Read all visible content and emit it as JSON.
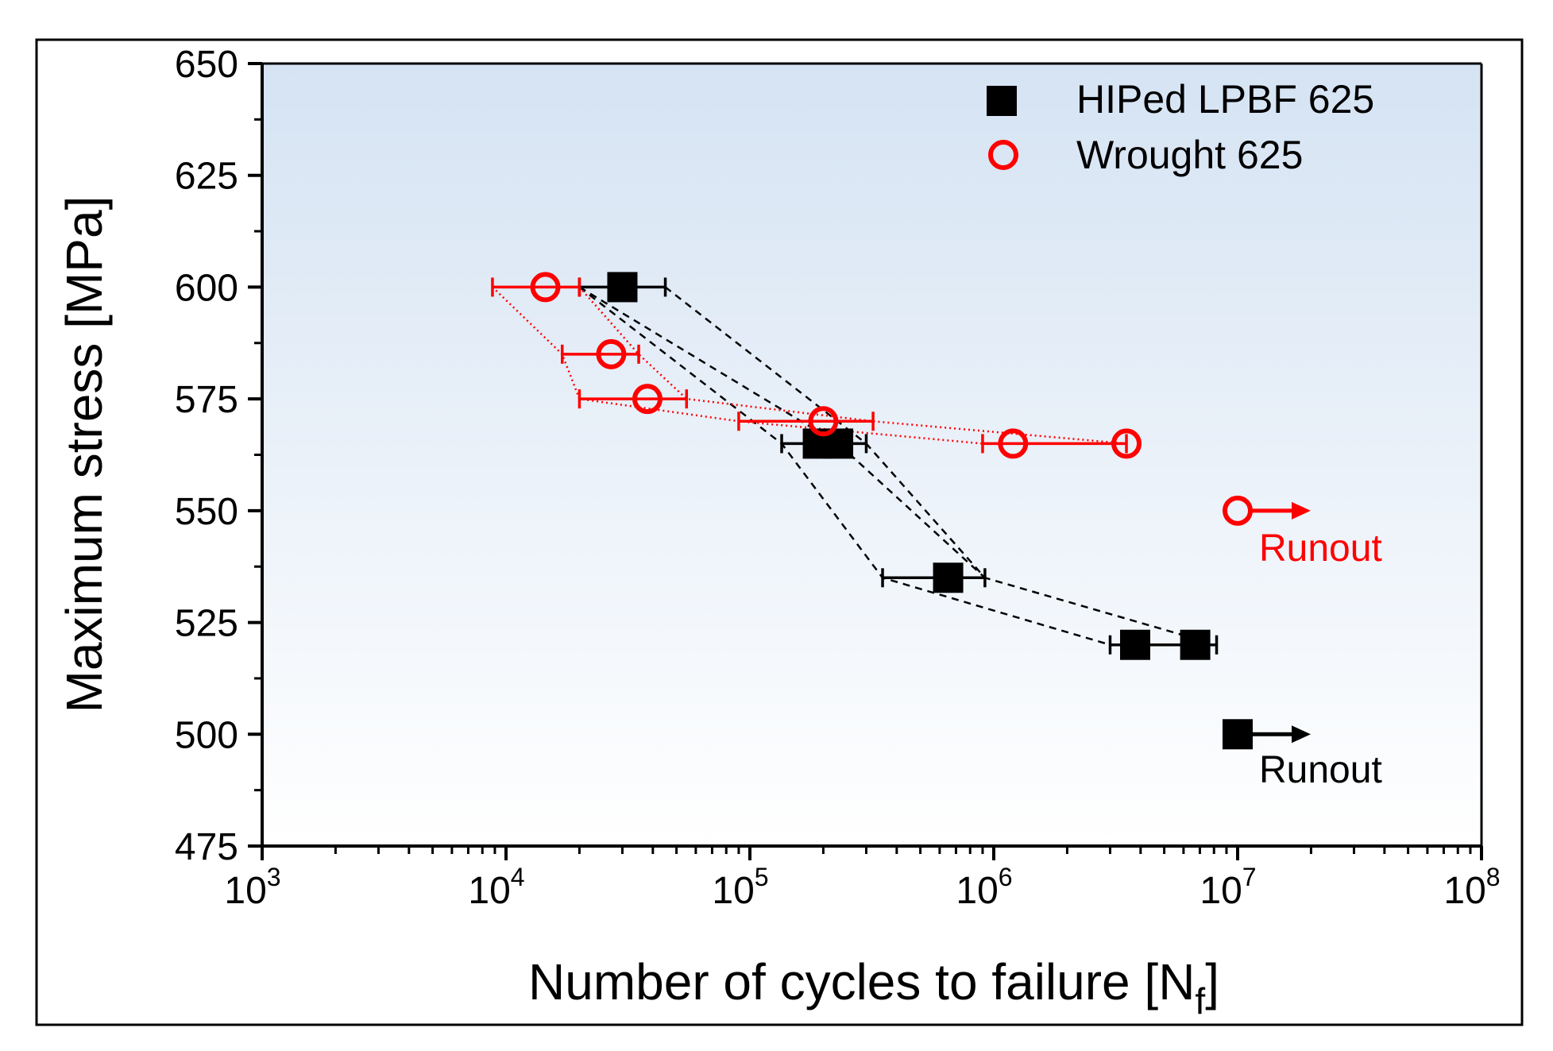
{
  "chart_data": {
    "type": "scatter",
    "title": "",
    "xlabel": "Number of cycles to failure [N",
    "xlabel_sub": "f",
    "xlabel_close": "]",
    "ylabel": "Maximum stress [MPa]",
    "xscale": "log",
    "xlim": [
      1000,
      100000000
    ],
    "ylim": [
      475,
      650
    ],
    "xticks": [
      {
        "base": "10",
        "exp": "3",
        "value": 1000
      },
      {
        "base": "10",
        "exp": "4",
        "value": 10000
      },
      {
        "base": "10",
        "exp": "5",
        "value": 100000
      },
      {
        "base": "10",
        "exp": "6",
        "value": 1000000
      },
      {
        "base": "10",
        "exp": "7",
        "value": 10000000
      },
      {
        "base": "10",
        "exp": "8",
        "value": 100000000
      }
    ],
    "yticks": [
      "475",
      "500",
      "525",
      "550",
      "575",
      "600",
      "625",
      "650"
    ],
    "legend_position": "top-right",
    "colors": {
      "hiped": "#000000",
      "wrought": "#ff0000",
      "bg_top": "#d5e3f3",
      "bg_bottom": "#ffffff"
    },
    "series": [
      {
        "name": "HIPed LPBF 625",
        "marker": "filled-square",
        "points": [
          {
            "stress": 600,
            "cycles": 30000,
            "xerr": [
              20000,
              45000
            ]
          },
          {
            "stress": 565,
            "cycles": 190000,
            "xerr": [
              135000,
              300000
            ]
          },
          {
            "stress": 565,
            "cycles": 230000,
            "xerr": null
          },
          {
            "stress": 535,
            "cycles": 650000,
            "xerr": [
              350000,
              920000
            ]
          },
          {
            "stress": 520,
            "cycles": 3800000,
            "xerr": [
              3000000,
              6500000
            ]
          },
          {
            "stress": 520,
            "cycles": 6700000,
            "xerr": [
              3800000,
              8200000
            ]
          }
        ],
        "dashed_lines": [
          [
            {
              "stress": 600,
              "cycles": 20000
            },
            {
              "stress": 565,
              "cycles": 135000
            },
            {
              "stress": 535,
              "cycles": 350000
            },
            {
              "stress": 520,
              "cycles": 3000000
            }
          ],
          [
            {
              "stress": 600,
              "cycles": 45000
            },
            {
              "stress": 565,
              "cycles": 300000
            },
            {
              "stress": 535,
              "cycles": 920000
            },
            {
              "stress": 520,
              "cycles": 8200000
            }
          ],
          [
            {
              "stress": 600,
              "cycles": 20000
            },
            {
              "stress": 565,
              "cycles": 230000
            },
            {
              "stress": 535,
              "cycles": 920000
            }
          ]
        ],
        "runout": {
          "stress": 500,
          "cycles": 10000000,
          "label": "Runout"
        }
      },
      {
        "name": "Wrought 625",
        "marker": "open-circle",
        "points": [
          {
            "stress": 600,
            "cycles": 14500,
            "xerr": [
              8800,
              20000
            ]
          },
          {
            "stress": 585,
            "cycles": 27000,
            "xerr": [
              17000,
              35000
            ]
          },
          {
            "stress": 575,
            "cycles": 38000,
            "xerr": [
              20000,
              55000
            ]
          },
          {
            "stress": 570,
            "cycles": 200000,
            "xerr": [
              90000,
              320000
            ]
          },
          {
            "stress": 565,
            "cycles": 1200000,
            "xerr": [
              900000,
              3500000
            ]
          },
          {
            "stress": 565,
            "cycles": 3500000,
            "xerr": null
          }
        ],
        "dotted_lines": [
          [
            {
              "stress": 600,
              "cycles": 8800
            },
            {
              "stress": 585,
              "cycles": 17000
            },
            {
              "stress": 575,
              "cycles": 20000
            },
            {
              "stress": 570,
              "cycles": 90000
            },
            {
              "stress": 565,
              "cycles": 900000
            }
          ],
          [
            {
              "stress": 600,
              "cycles": 20000
            },
            {
              "stress": 585,
              "cycles": 35000
            },
            {
              "stress": 575,
              "cycles": 55000
            },
            {
              "stress": 570,
              "cycles": 320000
            },
            {
              "stress": 565,
              "cycles": 3500000
            }
          ]
        ],
        "runout": {
          "stress": 550,
          "cycles": 10000000,
          "label": "Runout"
        }
      }
    ]
  }
}
